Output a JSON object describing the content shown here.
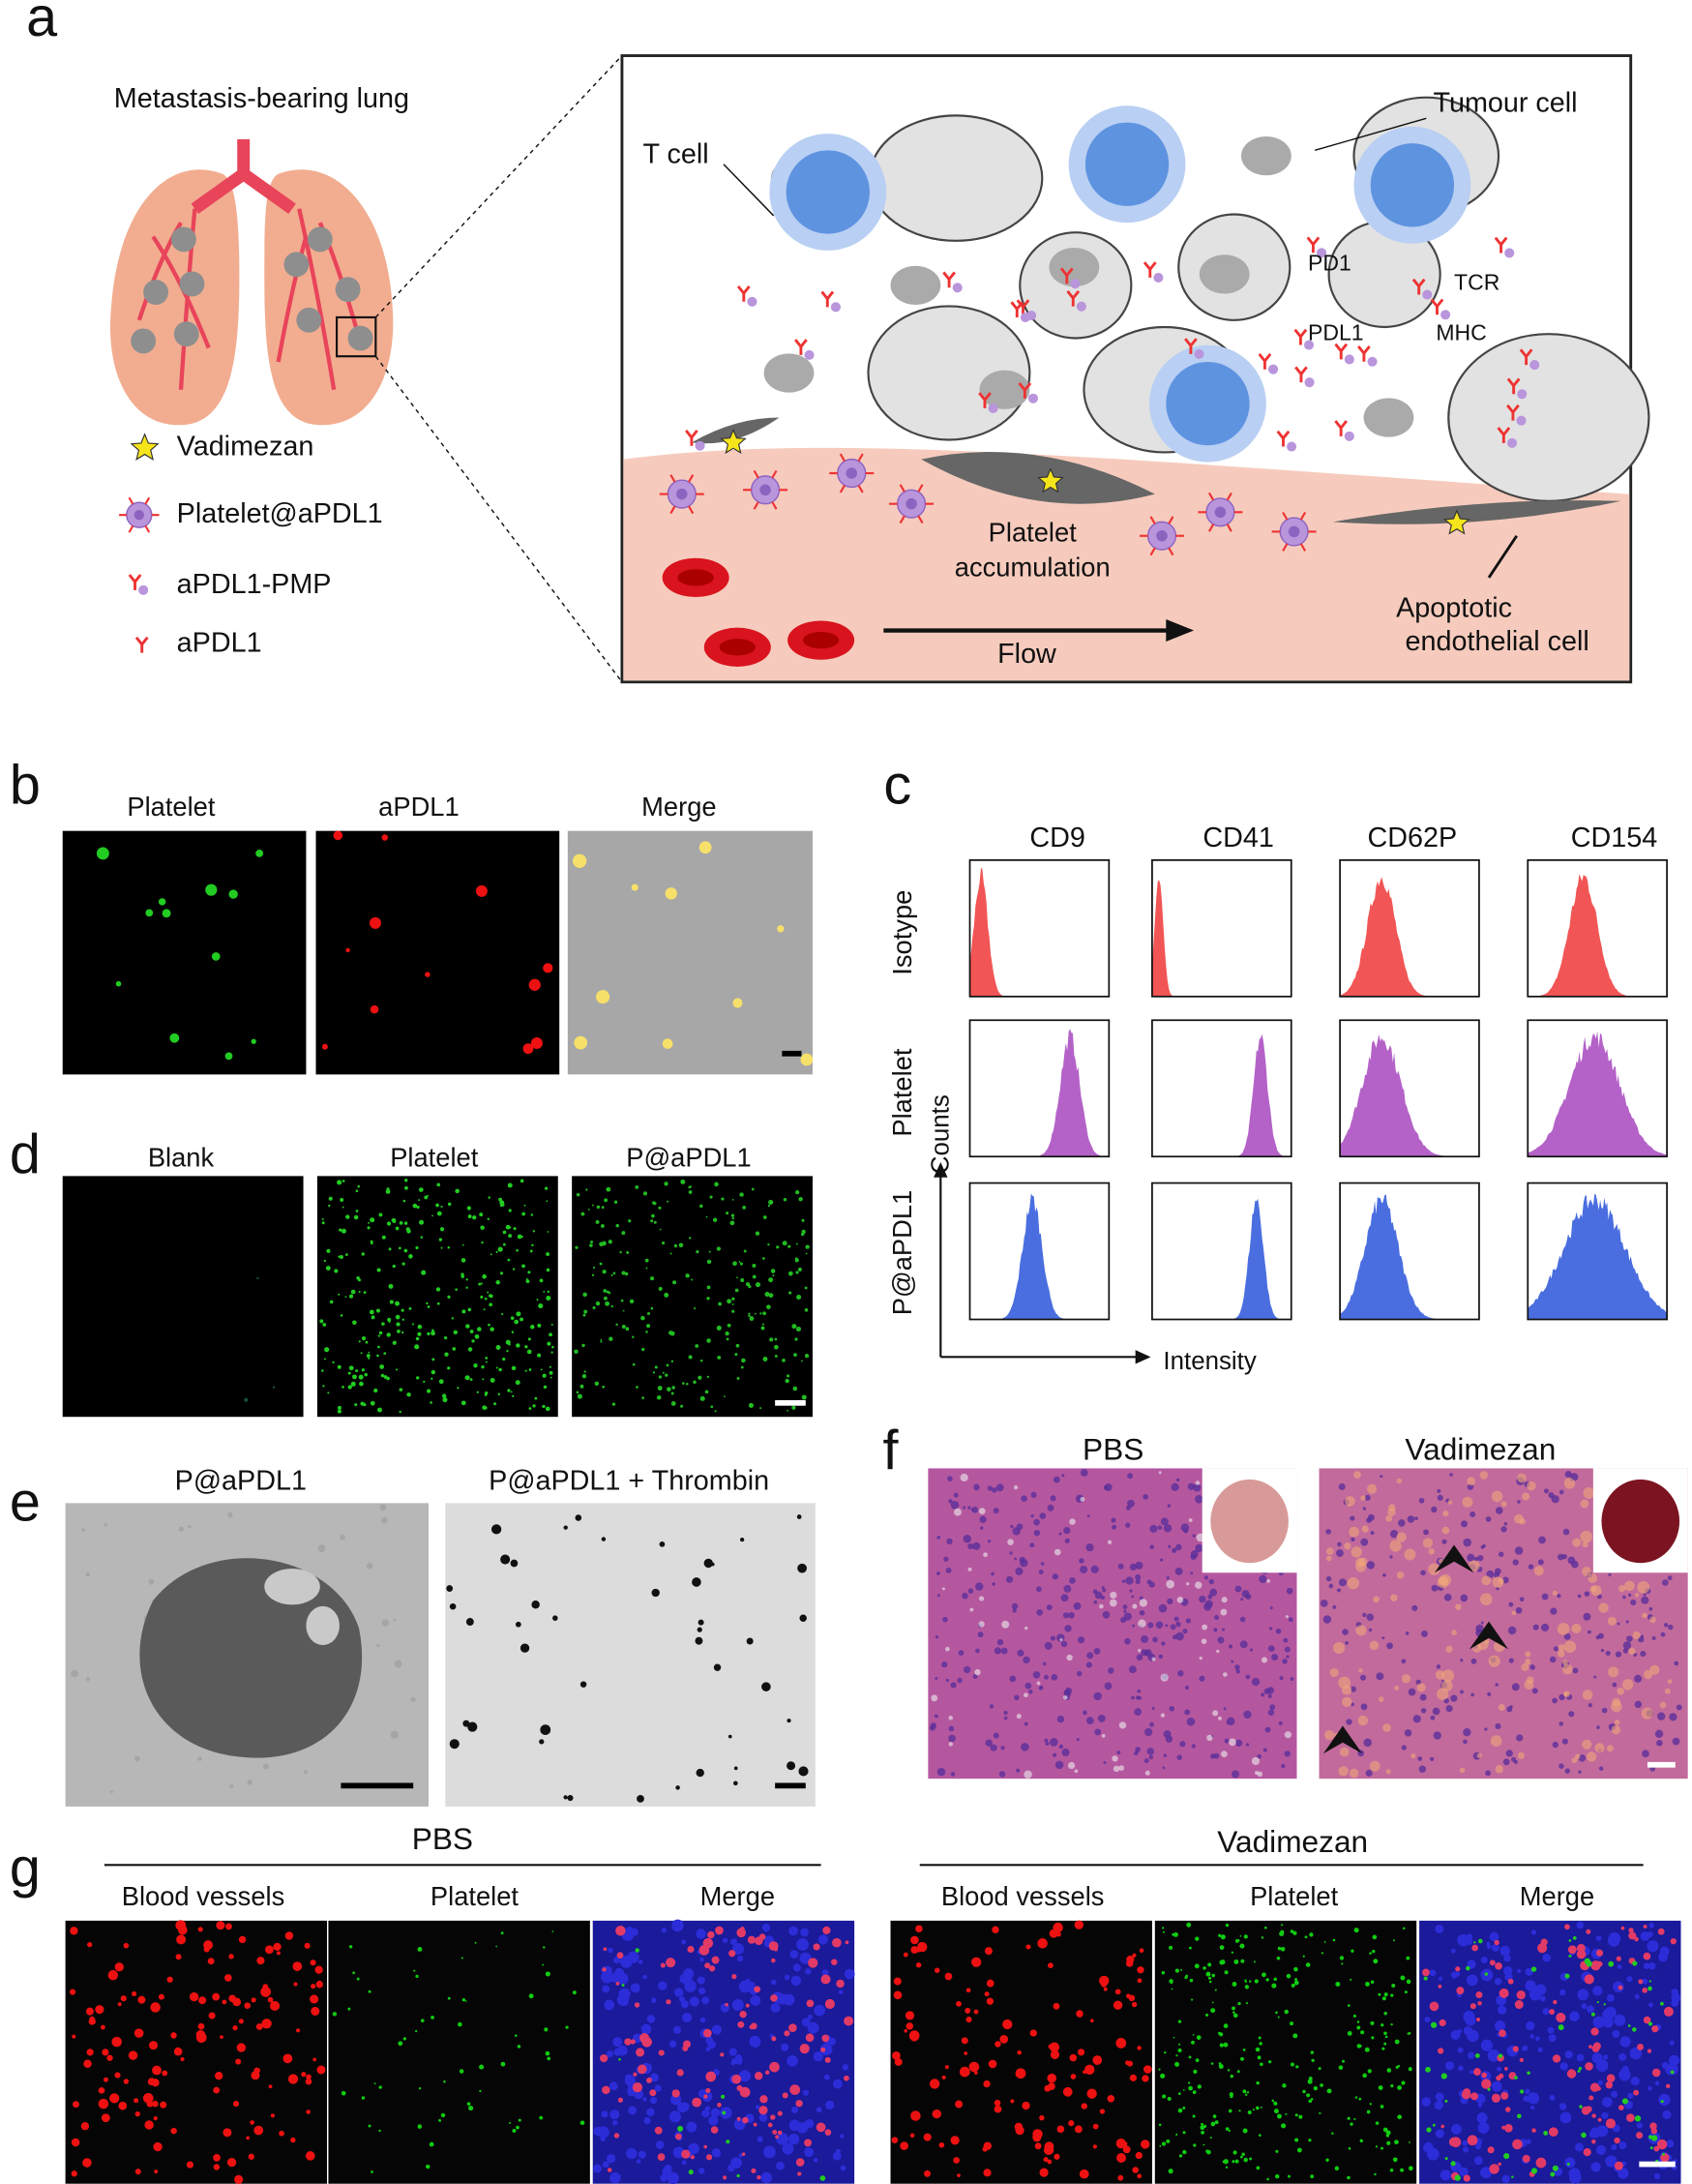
{
  "panel_labels": [
    "a",
    "b",
    "c",
    "d",
    "e",
    "f",
    "g"
  ],
  "a": {
    "title": "Metastasis-bearing lung",
    "legend": [
      "Vadimezan",
      "Platelet@aPDL1",
      "aPDL1-PMP",
      "aPDL1"
    ],
    "annotations": {
      "t_cell": "T cell",
      "tumour_cell": "Tumour cell",
      "pd1": "PD1",
      "pdl1": "PDL1",
      "tcr": "TCR",
      "mhc": "MHC",
      "platelet_accumulation_1": "Platelet",
      "platelet_accumulation_2": "accumulation",
      "flow": "Flow",
      "apoptotic_1": "Apoptotic",
      "apoptotic_2": "endothelial cell"
    }
  },
  "b": {
    "columns": [
      "Platelet",
      "aPDL1",
      "Merge"
    ]
  },
  "c": {
    "columns": [
      "CD9",
      "CD41",
      "CD62P",
      "CD154"
    ],
    "rows": [
      "Isotype",
      "Platelet",
      "P@aPDL1"
    ],
    "y_axis": "Counts",
    "x_axis": "Intensity"
  },
  "d": {
    "columns": [
      "Blank",
      "Platelet",
      "P@aPDL1"
    ]
  },
  "e": {
    "columns": [
      "P@aPDL1",
      "P@aPDL1 + Thrombin"
    ]
  },
  "f": {
    "columns": [
      "PBS",
      "Vadimezan"
    ]
  },
  "g": {
    "groups": [
      {
        "title": "PBS",
        "columns": [
          "Blood vessels",
          "Platelet",
          "Merge"
        ]
      },
      {
        "title": "Vadimezan",
        "columns": [
          "Blood vessels",
          "Platelet",
          "Merge"
        ]
      }
    ]
  }
}
